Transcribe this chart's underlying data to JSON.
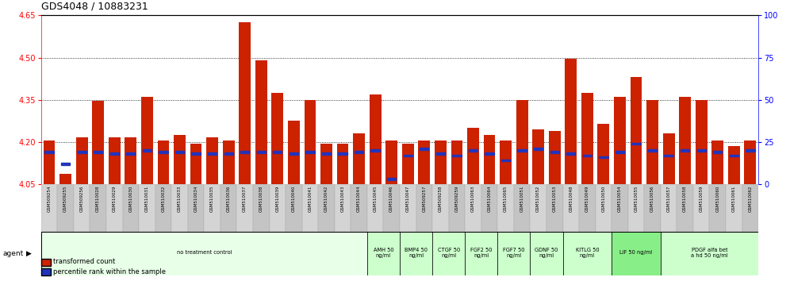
{
  "title": "GDS4048 / 10883231",
  "ylim_left": [
    4.05,
    4.65
  ],
  "ylim_right": [
    0,
    100
  ],
  "yticks_left": [
    4.05,
    4.2,
    4.35,
    4.5,
    4.65
  ],
  "yticks_right": [
    0,
    25,
    50,
    75,
    100
  ],
  "bar_color": "#CC2200",
  "blue_color": "#2233BB",
  "samples": [
    "GSM509254",
    "GSM509255",
    "GSM509256",
    "GSM510028",
    "GSM510029",
    "GSM510030",
    "GSM510031",
    "GSM510032",
    "GSM510033",
    "GSM510034",
    "GSM510035",
    "GSM510036",
    "GSM510037",
    "GSM510038",
    "GSM510039",
    "GSM510040",
    "GSM510041",
    "GSM510042",
    "GSM510043",
    "GSM510044",
    "GSM510045",
    "GSM510046",
    "GSM510047",
    "GSM509257",
    "GSM509258",
    "GSM509259",
    "GSM510063",
    "GSM510064",
    "GSM510065",
    "GSM510051",
    "GSM510052",
    "GSM510053",
    "GSM510048",
    "GSM510049",
    "GSM510050",
    "GSM510054",
    "GSM510055",
    "GSM510056",
    "GSM510057",
    "GSM510058",
    "GSM510059",
    "GSM510060",
    "GSM510061",
    "GSM510062"
  ],
  "red_values": [
    4.205,
    4.085,
    4.215,
    4.345,
    4.215,
    4.215,
    4.36,
    4.205,
    4.225,
    4.195,
    4.215,
    4.205,
    4.625,
    4.49,
    4.375,
    4.275,
    4.35,
    4.195,
    4.195,
    4.23,
    4.37,
    4.205,
    4.195,
    4.205,
    4.205,
    4.205,
    4.25,
    4.225,
    4.205,
    4.35,
    4.245,
    4.24,
    4.495,
    4.375,
    4.265,
    4.36,
    4.43,
    4.35,
    4.23,
    4.36,
    4.35,
    4.205,
    4.185,
    4.205
  ],
  "blue_values": [
    19,
    12,
    19,
    19,
    18,
    18,
    20,
    19,
    19,
    18,
    18,
    18,
    19,
    19,
    19,
    18,
    19,
    18,
    18,
    19,
    20,
    3,
    17,
    21,
    18,
    17,
    20,
    18,
    14,
    20,
    21,
    19,
    18,
    17,
    16,
    19,
    24,
    20,
    17,
    20,
    20,
    19,
    17,
    20
  ],
  "baseline": 4.05,
  "agent_groups": [
    {
      "label": "no treatment control",
      "start": 0,
      "end": 20,
      "color": "#e8ffe8"
    },
    {
      "label": "AMH 50\nng/ml",
      "start": 20,
      "end": 22,
      "color": "#ccffcc"
    },
    {
      "label": "BMP4 50\nng/ml",
      "start": 22,
      "end": 24,
      "color": "#ccffcc"
    },
    {
      "label": "CTGF 50\nng/ml",
      "start": 24,
      "end": 26,
      "color": "#ccffcc"
    },
    {
      "label": "FGF2 50\nng/ml",
      "start": 26,
      "end": 28,
      "color": "#ccffcc"
    },
    {
      "label": "FGF7 50\nng/ml",
      "start": 28,
      "end": 30,
      "color": "#ccffcc"
    },
    {
      "label": "GDNF 50\nng/ml",
      "start": 30,
      "end": 32,
      "color": "#ccffcc"
    },
    {
      "label": "KITLG 50\nng/ml",
      "start": 32,
      "end": 35,
      "color": "#ccffcc"
    },
    {
      "label": "LIF 50 ng/ml",
      "start": 35,
      "end": 38,
      "color": "#88ee88"
    },
    {
      "label": "PDGF alfa bet\na hd 50 ng/ml",
      "start": 38,
      "end": 44,
      "color": "#ccffcc"
    }
  ],
  "fig_bg": "#ffffff",
  "plot_bg": "#ffffff"
}
